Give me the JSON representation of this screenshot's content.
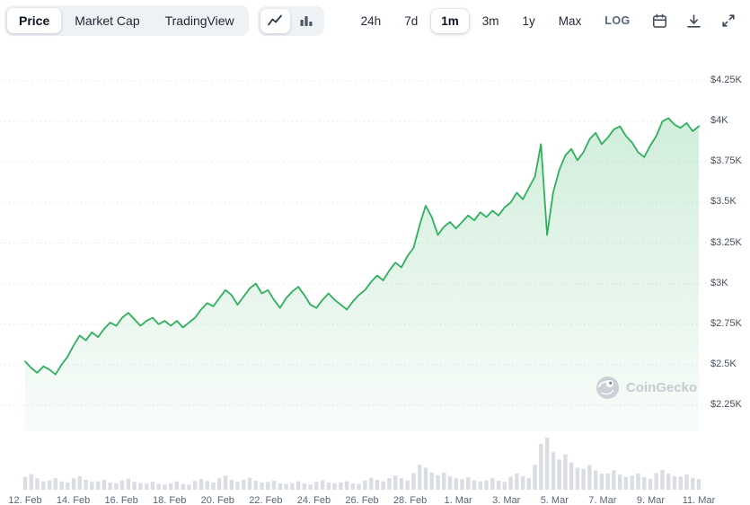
{
  "toolbar": {
    "tabs": [
      {
        "label": "Price",
        "active": true
      },
      {
        "label": "Market Cap",
        "active": false
      },
      {
        "label": "TradingView",
        "active": false
      }
    ],
    "chart_types": [
      "line-chart-icon",
      "bar-chart-icon"
    ],
    "ranges": [
      {
        "label": "24h",
        "active": false
      },
      {
        "label": "7d",
        "active": false
      },
      {
        "label": "1m",
        "active": true
      },
      {
        "label": "3m",
        "active": false
      },
      {
        "label": "1y",
        "active": false
      },
      {
        "label": "Max",
        "active": false
      }
    ],
    "log_label": "LOG",
    "action_icons": [
      "calendar-icon",
      "download-icon",
      "expand-icon"
    ]
  },
  "watermark": {
    "label": "CoinGecko"
  },
  "colors": {
    "line": "#2eb05c",
    "fill_top": "rgba(46,176,92,0.22)",
    "fill_bottom": "rgba(46,176,92,0.03)",
    "volume": "#dadde2",
    "grid": "#e5e8eb"
  },
  "chart_data": {
    "type": "area",
    "title": "Price chart, 1 month range",
    "yaxis_side": "right",
    "grid": "dotted horizontal",
    "legend": "none",
    "y_ticks": [
      "$4.25K",
      "$4K",
      "$3.75K",
      "$3.5K",
      "$3.25K",
      "$3K",
      "$2.75K",
      "$2.5K",
      "$2.25K"
    ],
    "y_tick_values": [
      4.25,
      4.0,
      3.75,
      3.5,
      3.25,
      3.0,
      2.75,
      2.5,
      2.25
    ],
    "x_tick_labels": [
      "12. Feb",
      "14. Feb",
      "16. Feb",
      "18. Feb",
      "20. Feb",
      "22. Feb",
      "24. Feb",
      "26. Feb",
      "28. Feb",
      "1. Mar",
      "3. Mar",
      "5. Mar",
      "7. Mar",
      "9. Mar",
      "11. Mar"
    ],
    "start_label": "12. Feb",
    "end_label": "11. Mar",
    "points_per_day": 4,
    "value_unit": "$K",
    "series": [
      {
        "name": "Price",
        "values": [
          2.52,
          2.48,
          2.45,
          2.49,
          2.47,
          2.44,
          2.5,
          2.55,
          2.62,
          2.68,
          2.65,
          2.7,
          2.67,
          2.72,
          2.76,
          2.74,
          2.79,
          2.82,
          2.78,
          2.74,
          2.77,
          2.79,
          2.75,
          2.77,
          2.74,
          2.77,
          2.73,
          2.76,
          2.79,
          2.84,
          2.88,
          2.86,
          2.91,
          2.96,
          2.93,
          2.87,
          2.92,
          2.97,
          3.0,
          2.94,
          2.96,
          2.9,
          2.85,
          2.91,
          2.95,
          2.98,
          2.93,
          2.87,
          2.85,
          2.9,
          2.94,
          2.9,
          2.87,
          2.84,
          2.89,
          2.93,
          2.96,
          3.01,
          3.05,
          3.02,
          3.08,
          3.13,
          3.1,
          3.17,
          3.22,
          3.36,
          3.48,
          3.41,
          3.3,
          3.35,
          3.38,
          3.34,
          3.38,
          3.42,
          3.39,
          3.44,
          3.41,
          3.45,
          3.42,
          3.47,
          3.5,
          3.56,
          3.52,
          3.59,
          3.66,
          3.86,
          3.3,
          3.56,
          3.7,
          3.79,
          3.83,
          3.76,
          3.81,
          3.89,
          3.93,
          3.86,
          3.9,
          3.95,
          3.97,
          3.91,
          3.87,
          3.81,
          3.78,
          3.85,
          3.91,
          4.0,
          4.02,
          3.98,
          3.96,
          3.99,
          3.94,
          3.97
        ]
      }
    ],
    "volume_relative": [
      0.25,
      0.3,
      0.22,
      0.16,
      0.18,
      0.22,
      0.16,
      0.14,
      0.22,
      0.26,
      0.19,
      0.15,
      0.16,
      0.19,
      0.14,
      0.12,
      0.18,
      0.21,
      0.15,
      0.13,
      0.12,
      0.15,
      0.11,
      0.1,
      0.12,
      0.16,
      0.11,
      0.1,
      0.17,
      0.21,
      0.17,
      0.14,
      0.22,
      0.27,
      0.19,
      0.15,
      0.19,
      0.23,
      0.17,
      0.14,
      0.15,
      0.17,
      0.12,
      0.11,
      0.13,
      0.16,
      0.12,
      0.1,
      0.15,
      0.18,
      0.14,
      0.12,
      0.14,
      0.16,
      0.12,
      0.11,
      0.18,
      0.23,
      0.19,
      0.16,
      0.22,
      0.27,
      0.22,
      0.18,
      0.32,
      0.48,
      0.42,
      0.33,
      0.28,
      0.33,
      0.26,
      0.22,
      0.2,
      0.24,
      0.18,
      0.16,
      0.18,
      0.22,
      0.17,
      0.15,
      0.25,
      0.31,
      0.26,
      0.22,
      0.48,
      0.88,
      1.0,
      0.72,
      0.58,
      0.68,
      0.52,
      0.42,
      0.4,
      0.47,
      0.37,
      0.31,
      0.31,
      0.37,
      0.29,
      0.25,
      0.27,
      0.31,
      0.24,
      0.21,
      0.32,
      0.38,
      0.31,
      0.26,
      0.25,
      0.29,
      0.23,
      0.2
    ]
  }
}
